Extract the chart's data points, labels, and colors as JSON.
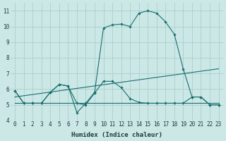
{
  "xlabel": "Humidex (Indice chaleur)",
  "background_color": "#cce8e6",
  "grid_color": "#aacfcc",
  "line_color": "#1a6e6e",
  "xlim": [
    -0.5,
    23.5
  ],
  "ylim": [
    4,
    11.5
  ],
  "yticks": [
    4,
    5,
    6,
    7,
    8,
    9,
    10,
    11
  ],
  "xticks": [
    0,
    1,
    2,
    3,
    4,
    5,
    6,
    7,
    8,
    9,
    10,
    11,
    12,
    13,
    14,
    15,
    16,
    17,
    18,
    19,
    20,
    21,
    22,
    23
  ],
  "series": [
    {
      "x": [
        0,
        1,
        2,
        3,
        4,
        5,
        6,
        7,
        8,
        9,
        10,
        11,
        12,
        13,
        14,
        15,
        16,
        17,
        18,
        19,
        20,
        21,
        22,
        23
      ],
      "y": [
        5.9,
        5.1,
        5.1,
        5.1,
        5.8,
        6.3,
        6.2,
        4.5,
        5.1,
        5.8,
        9.9,
        10.1,
        10.15,
        10.0,
        10.85,
        11.0,
        10.85,
        10.3,
        9.5,
        7.3,
        5.5,
        5.5,
        5.0,
        5.0
      ],
      "markers": true
    },
    {
      "x": [
        0,
        1,
        2,
        3,
        4,
        5,
        6,
        7,
        8,
        9,
        10,
        11,
        12,
        13,
        14,
        15,
        16,
        17,
        18,
        19,
        20,
        21,
        22,
        23
      ],
      "y": [
        5.9,
        5.1,
        5.1,
        5.1,
        5.8,
        6.3,
        6.2,
        5.1,
        5.0,
        5.75,
        6.5,
        6.5,
        6.1,
        5.4,
        5.15,
        5.1,
        5.1,
        5.1,
        5.1,
        5.1,
        5.5,
        5.5,
        5.0,
        5.0
      ],
      "markers": true
    },
    {
      "x": [
        0,
        23
      ],
      "y": [
        5.5,
        7.3
      ],
      "markers": false
    },
    {
      "x": [
        0,
        23
      ],
      "y": [
        5.1,
        5.1
      ],
      "markers": false
    }
  ]
}
